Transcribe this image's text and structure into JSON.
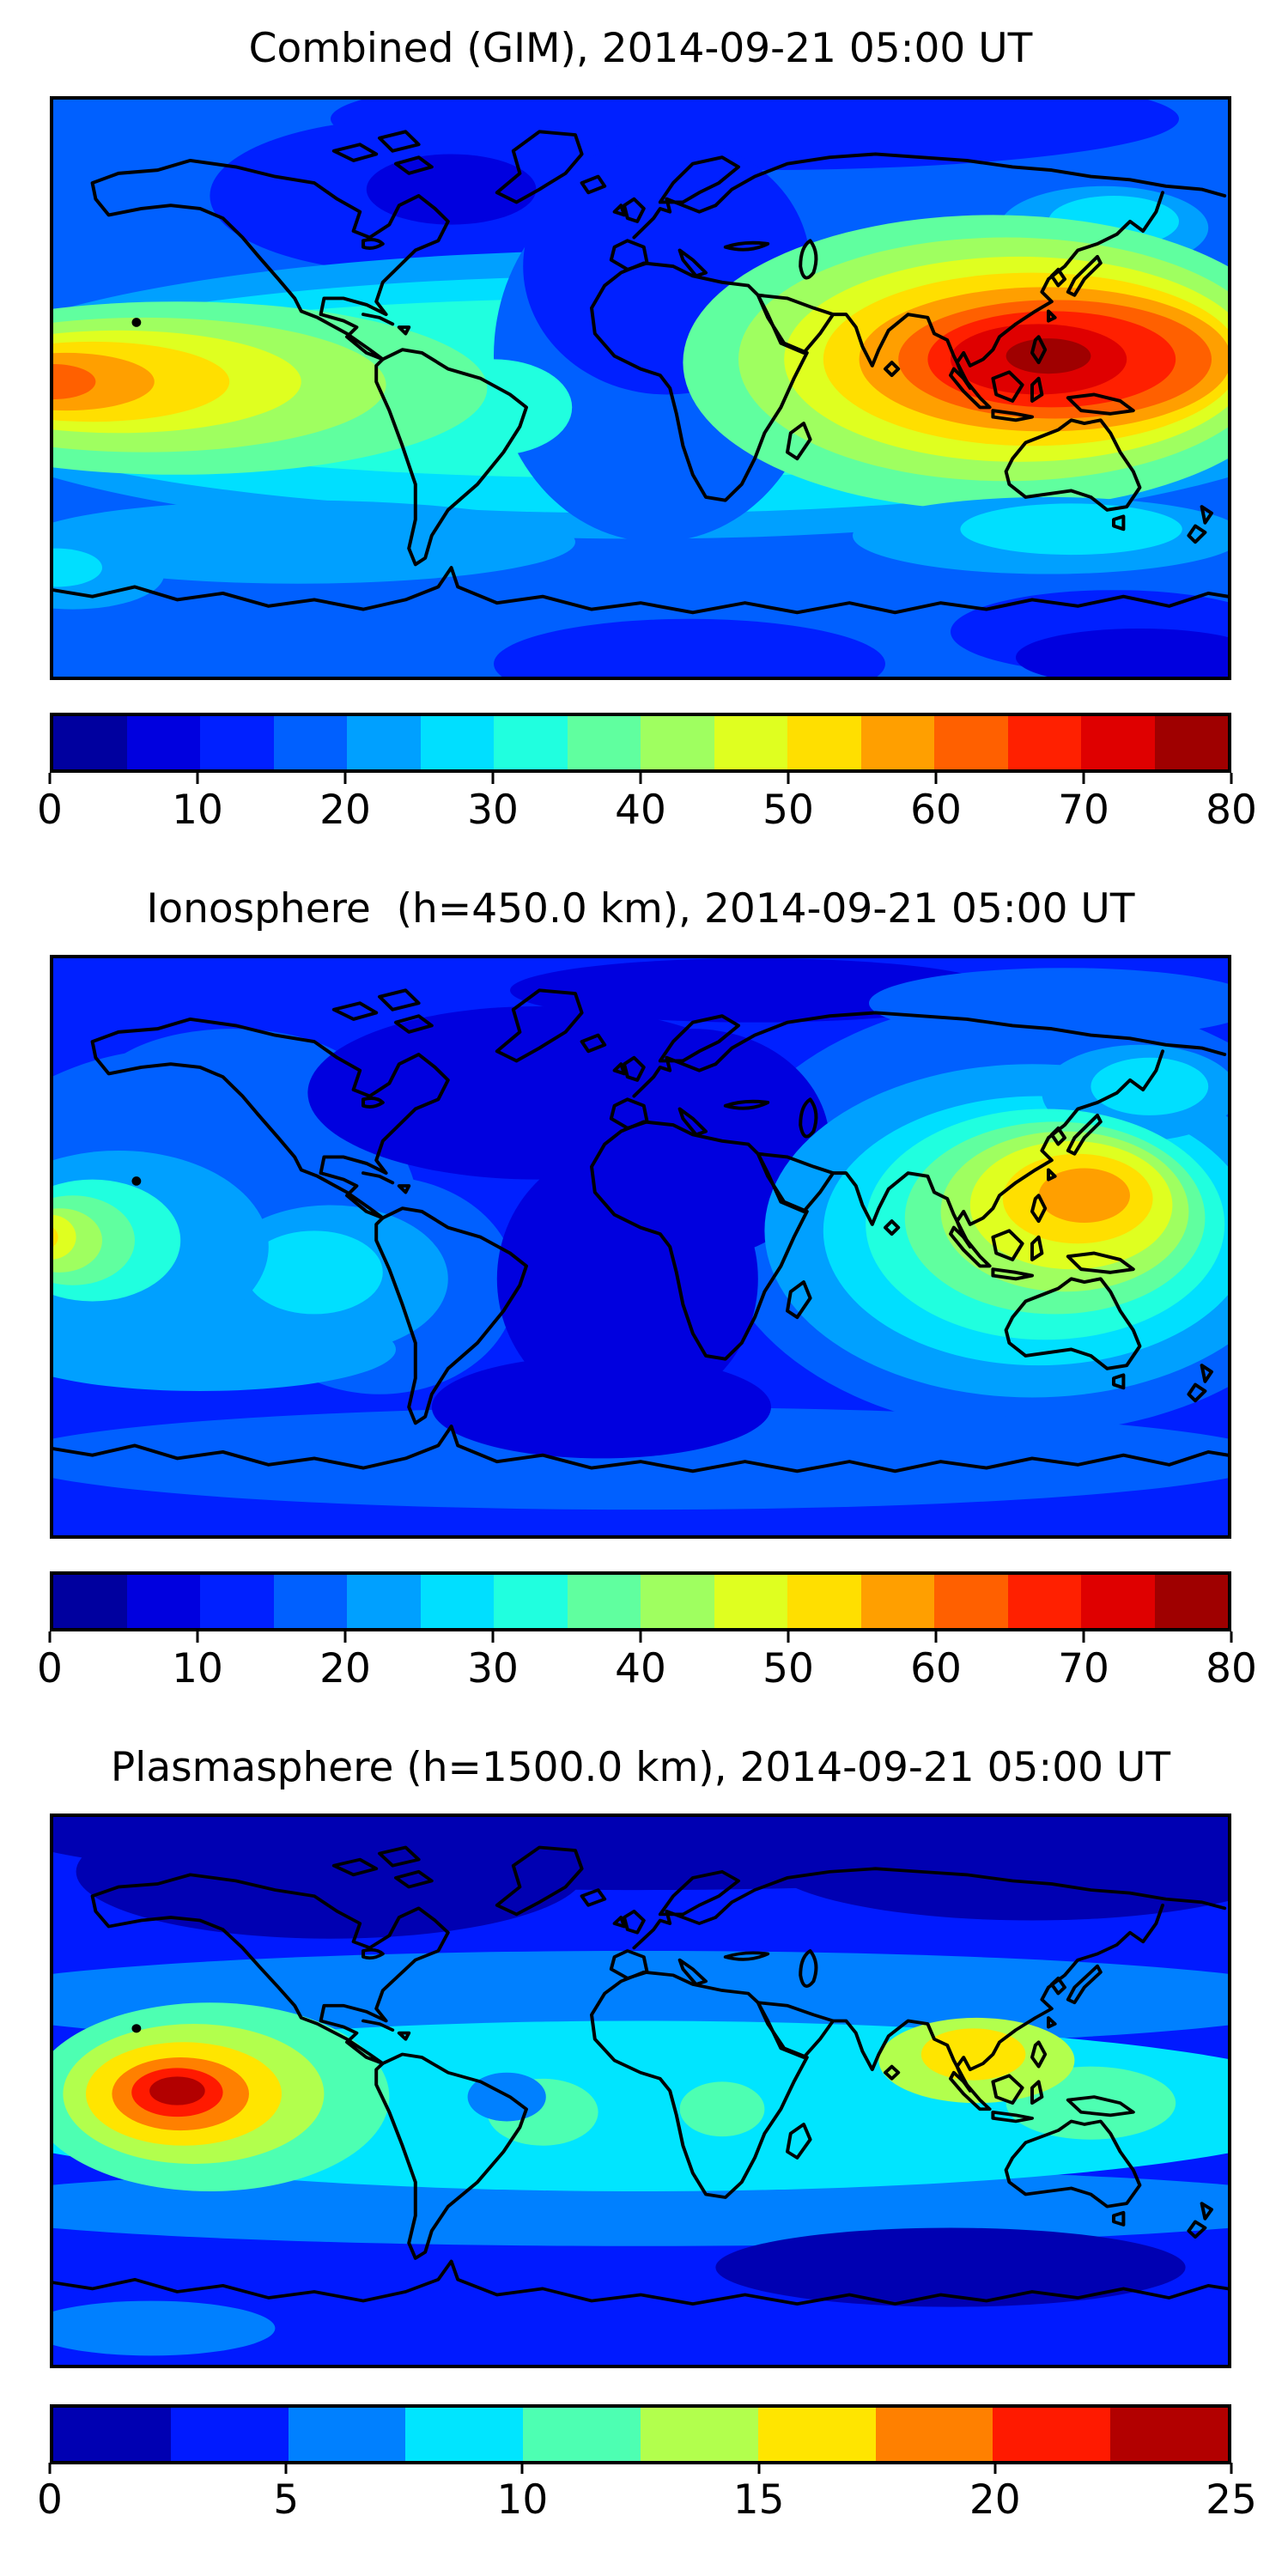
{
  "figure": {
    "background": "#ffffff",
    "text_color": "#000000"
  },
  "chart_data": [
    {
      "type": "heatmap",
      "style": "filled-contour global map, equirectangular projection, jet colormap, black coastlines",
      "title": "Combined (GIM), 2014-09-21 05:00 UT",
      "colorbar": {
        "min": 0,
        "max": 80,
        "level_step": 5,
        "n_levels": 16,
        "orientation": "horizontal",
        "position": "below map",
        "tick_labels": [
          "0",
          "10",
          "20",
          "30",
          "40",
          "50",
          "60",
          "70",
          "80"
        ],
        "segment_colors": [
          "#00009f",
          "#0000df",
          "#0020ff",
          "#0060ff",
          "#00a0ff",
          "#00dfff",
          "#20ffdf",
          "#60ff9f",
          "#9fff60",
          "#dfff20",
          "#ffdf00",
          "#ff9f00",
          "#ff6000",
          "#ff2000",
          "#df0000",
          "#9f0000"
        ]
      },
      "features": [
        {
          "label": "absolute maximum over Southeast Asia / western Pacific",
          "approx_lon_lat": [
            125,
            9
          ],
          "approx_value": 78
        },
        {
          "label": "secondary elongated maximum at western map edge (central Pacific)",
          "approx_lon_lat": [
            -179,
            -1
          ],
          "approx_value": 63
        },
        {
          "label": "minimum over central Canada / North Atlantic",
          "approx_lon_lat": [
            -58,
            62
          ],
          "approx_value": 7
        },
        {
          "label": "elevated equatorial band",
          "approx_value_range": [
            25,
            45
          ]
        },
        {
          "label": "low dark-blue sector over Atlantic, Europe and Africa",
          "approx_value_range": [
            10,
            20
          ]
        }
      ]
    },
    {
      "type": "heatmap",
      "style": "filled-contour global map, equirectangular projection, jet colormap, black coastlines",
      "title": "Ionosphere  (h=450.0 km), 2014-09-21 05:00 UT",
      "colorbar": {
        "min": 0,
        "max": 80,
        "level_step": 5,
        "n_levels": 16,
        "orientation": "horizontal",
        "position": "below map",
        "tick_labels": [
          "0",
          "10",
          "20",
          "30",
          "40",
          "50",
          "60",
          "70",
          "80"
        ],
        "segment_colors": [
          "#00009f",
          "#0000df",
          "#0020ff",
          "#0060ff",
          "#00a0ff",
          "#00dfff",
          "#20ffdf",
          "#60ff9f",
          "#9fff60",
          "#dfff20",
          "#ffdf00",
          "#ff9f00",
          "#ff6000",
          "#ff2000",
          "#df0000",
          "#9f0000"
        ]
      },
      "features": [
        {
          "label": "maximum over Philippines / western Pacific",
          "approx_lon_lat": [
            135,
            15
          ],
          "approx_value": 58
        },
        {
          "label": "small secondary maximum at western map edge",
          "approx_lon_lat": [
            -179,
            2
          ],
          "approx_value": 48
        },
        {
          "label": "broad minimum over Atlantic, Europe and Africa",
          "approx_value_range": [
            5,
            15
          ]
        },
        {
          "label": "cyan moderate region over Indian Ocean and Australia",
          "approx_value_range": [
            25,
            35
          ]
        }
      ]
    },
    {
      "type": "heatmap",
      "style": "filled-contour global map, equirectangular projection, jet colormap, black coastlines",
      "title": "Plasmasphere (h=1500.0 km), 2014-09-21 05:00 UT",
      "colorbar": {
        "min": 0,
        "max": 25,
        "level_step": 2.5,
        "n_levels": 10,
        "orientation": "horizontal",
        "position": "below map",
        "tick_labels": [
          "0",
          "5",
          "10",
          "15",
          "20",
          "25"
        ],
        "segment_colors": [
          "#0000b2",
          "#001aff",
          "#0080ff",
          "#00e5ff",
          "#4dffb2",
          "#b2ff4d",
          "#ffe500",
          "#ff8000",
          "#ff1a00",
          "#b20000"
        ]
      },
      "features": [
        {
          "label": "dark-red bullseye maximum in central/eastern Pacific",
          "approx_lon_lat": [
            -142,
            0
          ],
          "approx_value": 24
        },
        {
          "label": "secondary yellow maximum over South / Southeast Asia",
          "approx_lon_lat": [
            103,
            12
          ],
          "approx_value": 16
        },
        {
          "label": "broad cyan equatorial band",
          "approx_value_range": [
            8,
            10
          ]
        },
        {
          "label": "dark navy high-latitude bands (north polar and south of Australia)",
          "approx_value_range": [
            0,
            3
          ]
        }
      ]
    }
  ]
}
